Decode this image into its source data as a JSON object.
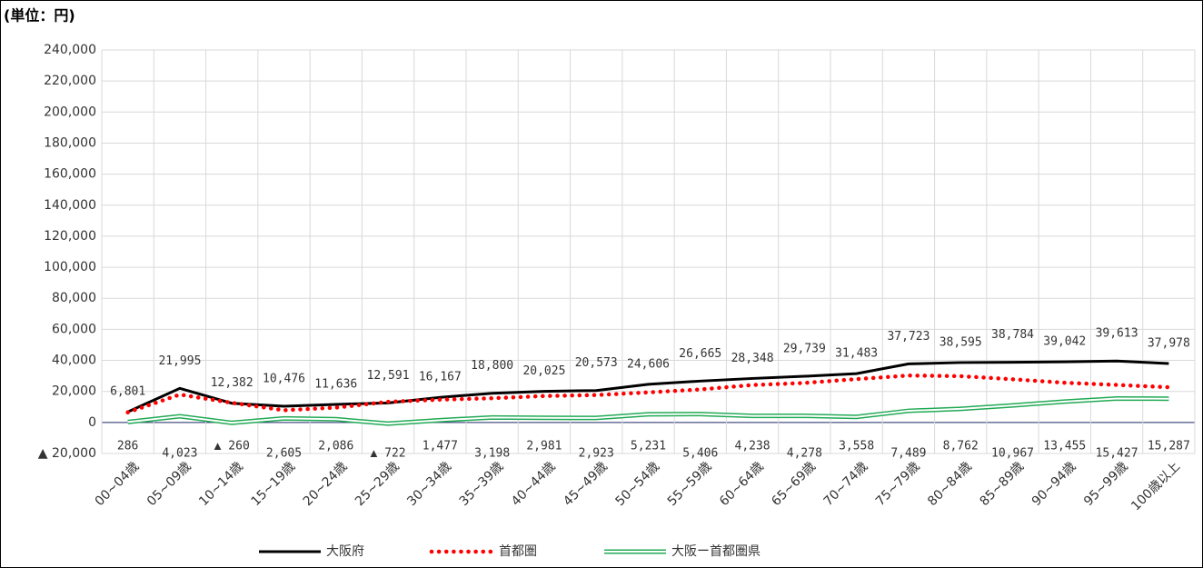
{
  "chart_data": {
    "type": "line",
    "unit_label": "(単位：円)",
    "categories": [
      "00~04歳",
      "05~09歳",
      "10~14歳",
      "15~19歳",
      "20~24歳",
      "25~29歳",
      "30~34歳",
      "35~39歳",
      "40~44歳",
      "45~49歳",
      "50~54歳",
      "55~59歳",
      "60~64歳",
      "65~69歳",
      "70~74歳",
      "75~79歳",
      "80~84歳",
      "85~89歳",
      "90~94歳",
      "95~99歳",
      "100歳以上"
    ],
    "series": [
      {
        "name": "大阪府",
        "color": "#000000",
        "style": "solid",
        "values": [
          6801,
          21995,
          12382,
          10476,
          11636,
          12591,
          16167,
          18800,
          20025,
          20573,
          24606,
          26665,
          28348,
          29739,
          31483,
          37723,
          38595,
          38784,
          39042,
          39613,
          37978
        ],
        "value_labels": [
          "6,801",
          "21,995",
          "12,382",
          "10,476",
          "11,636",
          "12,591",
          "16,167",
          "18,800",
          "20,025",
          "20,573",
          "24,606",
          "26,665",
          "28,348",
          "29,739",
          "31,483",
          "37,723",
          "38,595",
          "38,784",
          "39,042",
          "39,613",
          "37,978"
        ]
      },
      {
        "name": "首都圏",
        "color": "#ff0000",
        "style": "dotted",
        "values": [
          6515,
          17972,
          12642,
          7871,
          9550,
          13313,
          14690,
          15602,
          17044,
          17650,
          19375,
          21259,
          24110,
          25461,
          27925,
          30234,
          29833,
          27817,
          25587,
          24186,
          22691
        ]
      },
      {
        "name": "大阪ー首都圏県",
        "color": "#22aa55",
        "style": "double",
        "values": [
          286,
          4023,
          -260,
          2605,
          2086,
          -722,
          1477,
          3198,
          2981,
          2923,
          5231,
          5406,
          4238,
          4278,
          3558,
          7489,
          8762,
          10967,
          13455,
          15427,
          15287
        ],
        "value_labels": [
          "286",
          "4,023",
          "▲ 260",
          "2,605",
          "2,086",
          "▲ 722",
          "1,477",
          "3,198",
          "2,981",
          "2,923",
          "5,231",
          "5,406",
          "4,238",
          "4,278",
          "3,558",
          "7,489",
          "8,762",
          "10,967",
          "13,455",
          "15,427",
          "15,287"
        ]
      }
    ],
    "ylim": [
      -20000,
      240000
    ],
    "yticks": [
      {
        "value": -20000,
        "label": "▲ 20,000"
      },
      0,
      {
        "value": 20000,
        "label": "20,000"
      },
      {
        "value": 40000,
        "label": "40,000"
      },
      {
        "value": 60000,
        "label": "60,000"
      },
      {
        "value": 80000,
        "label": "80,000"
      },
      {
        "value": 100000,
        "label": "100,000"
      },
      {
        "value": 120000,
        "label": "120,000"
      },
      {
        "value": 140000,
        "label": "140,000"
      },
      {
        "value": 160000,
        "label": "160,000"
      },
      {
        "value": 180000,
        "label": "180,000"
      },
      {
        "value": 200000,
        "label": "200,000"
      },
      {
        "value": 220000,
        "label": "220,000"
      },
      {
        "value": 240000,
        "label": "240,000"
      }
    ],
    "grid": true,
    "legend": "bottom"
  }
}
